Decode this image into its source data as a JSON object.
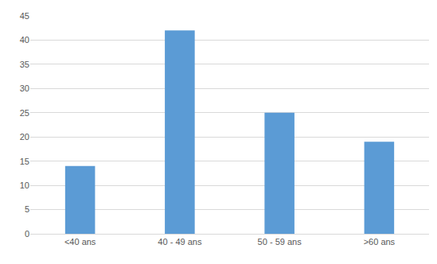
{
  "chart_data": {
    "type": "bar",
    "categories": [
      "<40 ans",
      "40 - 49 ans",
      "50 - 59 ans",
      ">60 ans"
    ],
    "values": [
      14,
      42,
      25,
      19
    ],
    "color": "#5b9bd5",
    "ylim": [
      0,
      45
    ],
    "yticks": [
      0,
      5,
      10,
      15,
      20,
      25,
      30,
      35,
      40,
      45
    ],
    "grid": true
  }
}
